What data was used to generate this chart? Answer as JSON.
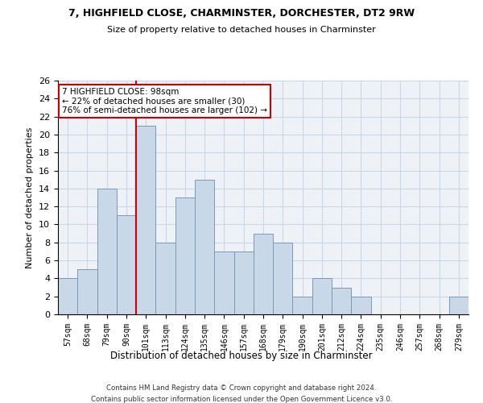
{
  "title1": "7, HIGHFIELD CLOSE, CHARMINSTER, DORCHESTER, DT2 9RW",
  "title2": "Size of property relative to detached houses in Charminster",
  "xlabel": "Distribution of detached houses by size in Charminster",
  "ylabel": "Number of detached properties",
  "categories": [
    "57sqm",
    "68sqm",
    "79sqm",
    "90sqm",
    "101sqm",
    "113sqm",
    "124sqm",
    "135sqm",
    "146sqm",
    "157sqm",
    "168sqm",
    "179sqm",
    "190sqm",
    "201sqm",
    "212sqm",
    "224sqm",
    "235sqm",
    "246sqm",
    "257sqm",
    "268sqm",
    "279sqm"
  ],
  "values": [
    4,
    5,
    14,
    11,
    21,
    8,
    13,
    15,
    7,
    7,
    9,
    8,
    2,
    4,
    3,
    2,
    0,
    0,
    0,
    0,
    2
  ],
  "bar_color": "#c8d8e8",
  "bar_edge_color": "#7799bb",
  "vline_color": "#cc0000",
  "annotation_text": "7 HIGHFIELD CLOSE: 98sqm\n← 22% of detached houses are smaller (30)\n76% of semi-detached houses are larger (102) →",
  "annotation_box_color": "white",
  "annotation_box_edge_color": "#cc0000",
  "ylim": [
    0,
    26
  ],
  "yticks": [
    0,
    2,
    4,
    6,
    8,
    10,
    12,
    14,
    16,
    18,
    20,
    22,
    24,
    26
  ],
  "footnote1": "Contains HM Land Registry data © Crown copyright and database right 2024.",
  "footnote2": "Contains public sector information licensed under the Open Government Licence v3.0.",
  "grid_color": "#c8d8e8",
  "bg_color": "#eef2f7"
}
